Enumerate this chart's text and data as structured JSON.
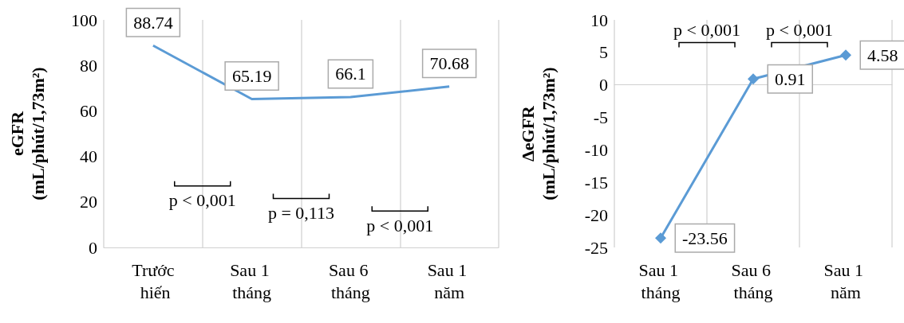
{
  "chart_data": [
    {
      "type": "line",
      "ylabel": "eGFR\n(mL/phút/1,73m²)",
      "categories": [
        "Trước hiến",
        "Sau 1 tháng",
        "Sau 6 tháng",
        "Sau 1 năm"
      ],
      "series": [
        {
          "color": "#5b9bd5",
          "values": [
            88.74,
            65.19,
            66.1,
            70.68
          ]
        }
      ],
      "ylim": [
        0,
        100
      ],
      "yticks": [
        0,
        20,
        40,
        60,
        80,
        100
      ],
      "grid": "x",
      "marker": "none",
      "line_style": "solid",
      "data_labels": true,
      "annotations": [
        "p < 0,001",
        "p = 0,113",
        "p < 0,001"
      ]
    },
    {
      "type": "line",
      "ylabel": "ΔeGFR\n(mL/phút/1,73m²)",
      "categories": [
        "Sau 1 tháng",
        "Sau 6 tháng",
        "Sau 1 năm"
      ],
      "series": [
        {
          "color": "#5b9bd5",
          "values": [
            -23.56,
            0.91,
            4.58
          ]
        }
      ],
      "ylim": [
        -25,
        10
      ],
      "yticks": [
        -25,
        -20,
        -15,
        -10,
        -5,
        0,
        5,
        10
      ],
      "grid": "x",
      "marker": "diamond",
      "line_style": "solid",
      "data_labels": true,
      "annotations": [
        "p < 0,001",
        "p < 0,001"
      ]
    }
  ]
}
